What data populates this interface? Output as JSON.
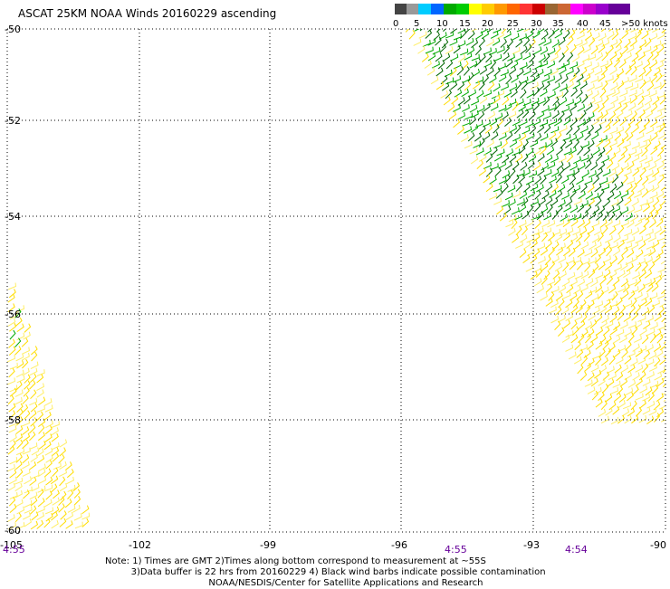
{
  "title": "ASCAT 25KM NOAA Winds 20160229 ascending",
  "legend": {
    "swatches": [
      "#444444",
      "#999999",
      "#00ccff",
      "#0066ff",
      "#00aa00",
      "#00cc00",
      "#ffff00",
      "#ffcc00",
      "#ff9900",
      "#ff6600",
      "#ff3333",
      "#cc0000",
      "#996633",
      "#cc6633",
      "#ff00ff",
      "#cc00cc",
      "#9900cc",
      "#660099"
    ],
    "labels": [
      "0",
      "5",
      "10",
      "15",
      "20",
      "25",
      "30",
      "35",
      "40",
      "45",
      ">50 knots"
    ]
  },
  "axes": {
    "lat_labels": [
      "-50",
      "-52",
      "-54",
      "-56",
      "-58",
      "-60"
    ],
    "lon_labels": [
      "-105",
      "-102",
      "-99",
      "-96",
      "-93",
      "-90"
    ]
  },
  "swath_times": [
    "4:55",
    "4:55",
    "4:54"
  ],
  "note_lines": [
    "Note: 1) Times are GMT 2)Times along bottom correspond to measurement at ~55S",
    "         3)Data buffer is 22 hrs from 20160229 4) Black wind barbs indicate possible contamination",
    "                                    NOAA/NESDIS/Center for Satellite Applications and Research"
  ],
  "colors": {
    "green": "#00aa00",
    "dark_green": "#006600",
    "yellow": "#ffdd00",
    "light_yellow": "#ffee66",
    "grid": "#000000"
  }
}
